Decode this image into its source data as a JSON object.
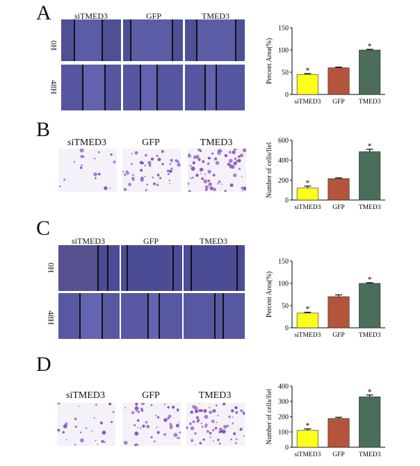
{
  "panels": [
    {
      "letter": "A",
      "type": "wound",
      "columns": [
        "siTMED3",
        "GFP",
        "TMED3"
      ],
      "rows": [
        "0H",
        "48H"
      ],
      "chart": {
        "type": "bar",
        "ylabel": "Percent Area(%)",
        "categories": [
          "siTMED3",
          "GFP",
          "TMED3"
        ],
        "values": [
          45,
          60,
          100
        ],
        "errors": [
          2,
          1.5,
          1.5
        ],
        "significant": [
          true,
          false,
          true
        ],
        "ylim": [
          0,
          150
        ],
        "yticks": [
          0,
          50,
          100,
          150
        ]
      }
    },
    {
      "letter": "B",
      "type": "transwell",
      "columns": [
        "siTMED3",
        "GFP",
        "TMED3"
      ],
      "chart": {
        "type": "bar",
        "ylabel": "Number of cells/fiel",
        "categories": [
          "siTMED3",
          "GFP",
          "TMED3"
        ],
        "values": [
          120,
          215,
          485
        ],
        "errors": [
          20,
          8,
          25
        ],
        "significant": [
          true,
          false,
          true
        ],
        "ylim": [
          0,
          600
        ],
        "yticks": [
          0,
          200,
          400,
          600
        ]
      }
    },
    {
      "letter": "C",
      "type": "wound",
      "columns": [
        "siTMED3",
        "GFP",
        "TMED3"
      ],
      "rows": [
        "0H",
        "48H"
      ],
      "chart": {
        "type": "bar",
        "ylabel": "Percent Area(%)",
        "categories": [
          "siTMED3",
          "GFP",
          "TMED3"
        ],
        "values": [
          33,
          70,
          100
        ],
        "errors": [
          2,
          4,
          1.5
        ],
        "significant": [
          true,
          false,
          true
        ],
        "ylim": [
          0,
          150
        ],
        "yticks": [
          0,
          50,
          100,
          150
        ]
      }
    },
    {
      "letter": "D",
      "type": "transwell",
      "columns": [
        "siTMED3",
        "GFP",
        "TMED3"
      ],
      "chart": {
        "type": "bar",
        "ylabel": "Number of cells/fiel",
        "categories": [
          "siTMED3",
          "GFP",
          "TMED3"
        ],
        "values": [
          110,
          188,
          330
        ],
        "errors": [
          10,
          8,
          12
        ],
        "significant": [
          true,
          false,
          true
        ],
        "ylim": [
          0,
          400
        ],
        "yticks": [
          0,
          100,
          200,
          300,
          400
        ]
      }
    }
  ],
  "bar_colors": [
    "#ffff1a",
    "#b5543a",
    "#4a6e58"
  ],
  "star": "*"
}
